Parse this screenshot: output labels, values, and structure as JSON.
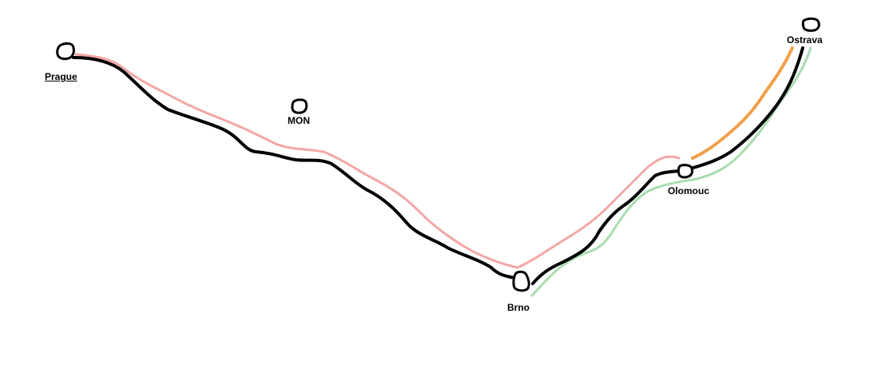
{
  "cities": {
    "prague": "Prague",
    "mon": "MON",
    "brno": "Brno",
    "olomouc": "Olomouc",
    "ostrava": "Ostrava"
  },
  "colors": {
    "main_route": "#000000",
    "pink_route": "#f4a6a6",
    "green_route": "#a8dcb0",
    "orange_route": "#f0a04a",
    "node_outline": "#000000",
    "background": "#ffffff"
  }
}
